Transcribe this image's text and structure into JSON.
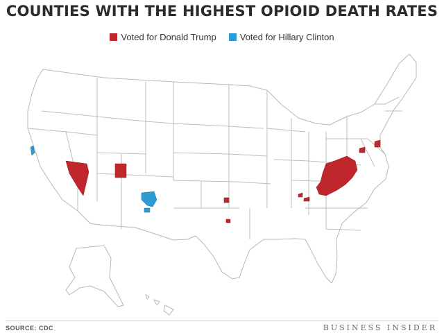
{
  "title": "COUNTIES WITH THE HIGHEST OPIOID DEATH RATES",
  "legend": {
    "trump_label": "Voted for Donald Trump",
    "clinton_label": "Voted for Hillary Clinton"
  },
  "colors": {
    "trump": "#c0272d",
    "clinton": "#2e9bd2",
    "state_fill": "#ffffff",
    "state_border": "#b7b7b7"
  },
  "source": "SOURCE: CDC",
  "brand": "BUSINESS INSIDER"
}
